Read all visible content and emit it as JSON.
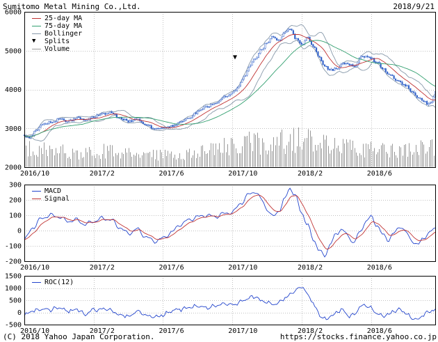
{
  "header": {
    "title": "Sumitomo Metal Mining Co.,Ltd.",
    "date": "2018/9/21"
  },
  "footer": {
    "copyright": "(C) 2018 Yahoo Japan Corporation.",
    "url": "https://stocks.finance.yahoo.co.jp"
  },
  "legend": {
    "price": [
      "25-day MA",
      "75-day MA",
      "Bollinger",
      "Splits",
      "Volume"
    ],
    "splits_marker": "▼",
    "macd": [
      "MACD",
      "Signal"
    ],
    "roc": [
      "ROC(12)"
    ]
  },
  "colors": {
    "ma25": "#c03333",
    "ma75": "#33a070",
    "bollinger": "#8899aa",
    "volume": "#999999",
    "candle": "#3060c8",
    "macd": "#2244cc",
    "signal": "#c03333",
    "roc": "#2244cc",
    "grid": "#c0c0c0",
    "border": "#000000"
  },
  "chart_data": [
    {
      "name": "price-panel",
      "type": "candlestick",
      "title": "Sumitomo Metal Mining Co.,Ltd.",
      "overlays": [
        "25-day MA",
        "75-day MA",
        "Bollinger bands",
        "Volume",
        "Splits"
      ],
      "x_axis": {
        "labels": [
          "2016/10",
          "2017/2",
          "2017/6",
          "2017/10",
          "2018/2",
          "2018/6"
        ],
        "tick_months": [
          0,
          4,
          8,
          12,
          16,
          20
        ],
        "months_total": 23.7,
        "start": "2016/10",
        "end": "2018/9/21"
      },
      "y_axis": {
        "ticks": [
          6000,
          5000,
          4000,
          3000,
          2000
        ],
        "range": [
          2000,
          6000
        ]
      },
      "close_anchors": [
        [
          0,
          2820
        ],
        [
          0.3,
          2760
        ],
        [
          0.7,
          2950
        ],
        [
          1,
          3080
        ],
        [
          1.5,
          3150
        ],
        [
          2,
          3230
        ],
        [
          2.5,
          3180
        ],
        [
          3,
          3260
        ],
        [
          3.5,
          3220
        ],
        [
          4,
          3300
        ],
        [
          4.5,
          3380
        ],
        [
          5,
          3400
        ],
        [
          5.5,
          3260
        ],
        [
          6,
          3180
        ],
        [
          6.5,
          3220
        ],
        [
          7,
          3120
        ],
        [
          7.5,
          2980
        ],
        [
          8,
          3000
        ],
        [
          8.5,
          3060
        ],
        [
          9,
          3150
        ],
        [
          9.5,
          3280
        ],
        [
          10,
          3420
        ],
        [
          10.5,
          3560
        ],
        [
          11,
          3650
        ],
        [
          11.5,
          3800
        ],
        [
          12,
          3900
        ],
        [
          12.3,
          4050
        ],
        [
          12.7,
          4350
        ],
        [
          13,
          4600
        ],
        [
          13.3,
          4800
        ],
        [
          13.7,
          5050
        ],
        [
          14,
          5200
        ],
        [
          14.3,
          5350
        ],
        [
          14.7,
          5250
        ],
        [
          15,
          5450
        ],
        [
          15.3,
          5550
        ],
        [
          15.7,
          5300
        ],
        [
          16,
          5150
        ],
        [
          16.3,
          5350
        ],
        [
          16.7,
          5100
        ],
        [
          17,
          4850
        ],
        [
          17.3,
          4600
        ],
        [
          17.7,
          4500
        ],
        [
          18,
          4550
        ],
        [
          18.5,
          4680
        ],
        [
          19,
          4600
        ],
        [
          19.5,
          4850
        ],
        [
          20,
          4800
        ],
        [
          20.3,
          4700
        ],
        [
          20.7,
          4550
        ],
        [
          21,
          4400
        ],
        [
          21.5,
          4250
        ],
        [
          22,
          4100
        ],
        [
          22.3,
          3950
        ],
        [
          22.7,
          3800
        ],
        [
          23,
          3700
        ],
        [
          23.3,
          3620
        ],
        [
          23.5,
          3680
        ],
        [
          23.7,
          3950
        ]
      ],
      "volume_profile": [
        [
          0,
          0.5
        ],
        [
          1,
          0.45
        ],
        [
          2,
          0.42
        ],
        [
          3,
          0.36
        ],
        [
          4,
          0.4
        ],
        [
          5,
          0.45
        ],
        [
          6,
          0.36
        ],
        [
          7,
          0.3
        ],
        [
          8,
          0.34
        ],
        [
          9,
          0.3
        ],
        [
          10,
          0.4
        ],
        [
          11,
          0.5
        ],
        [
          12,
          0.58
        ],
        [
          13,
          0.68
        ],
        [
          14,
          0.62
        ],
        [
          15,
          0.7
        ],
        [
          16,
          0.74
        ],
        [
          17,
          0.64
        ],
        [
          18,
          0.55
        ],
        [
          19,
          0.5
        ],
        [
          20,
          0.46
        ],
        [
          21,
          0.5
        ],
        [
          22,
          0.44
        ],
        [
          23,
          0.5
        ],
        [
          23.7,
          0.55
        ]
      ],
      "split_events": [
        {
          "month": 12.15,
          "value": 4780,
          "marker": "▼"
        }
      ]
    },
    {
      "name": "macd-panel",
      "type": "line",
      "y_axis": {
        "ticks": [
          300,
          200,
          100,
          0,
          -100,
          -200
        ],
        "range": [
          -200,
          300
        ]
      },
      "series": [
        {
          "name": "MACD",
          "anchors": [
            [
              0,
              -60
            ],
            [
              0.5,
              20
            ],
            [
              1,
              80
            ],
            [
              1.5,
              100
            ],
            [
              2,
              90
            ],
            [
              2.5,
              60
            ],
            [
              3,
              70
            ],
            [
              3.5,
              40
            ],
            [
              4,
              60
            ],
            [
              4.5,
              80
            ],
            [
              5,
              70
            ],
            [
              5.5,
              20
            ],
            [
              6,
              -20
            ],
            [
              6.5,
              10
            ],
            [
              7,
              -40
            ],
            [
              7.5,
              -70
            ],
            [
              8,
              -50
            ],
            [
              8.5,
              -10
            ],
            [
              9,
              40
            ],
            [
              9.5,
              70
            ],
            [
              10,
              90
            ],
            [
              10.5,
              100
            ],
            [
              11,
              90
            ],
            [
              11.5,
              110
            ],
            [
              12,
              120
            ],
            [
              12.5,
              180
            ],
            [
              13,
              240
            ],
            [
              13.3,
              255
            ],
            [
              13.7,
              200
            ],
            [
              14,
              140
            ],
            [
              14.3,
              90
            ],
            [
              14.7,
              130
            ],
            [
              15,
              200
            ],
            [
              15.3,
              280
            ],
            [
              15.6,
              230
            ],
            [
              16,
              120
            ],
            [
              16.3,
              40
            ],
            [
              16.7,
              -60
            ],
            [
              17,
              -130
            ],
            [
              17.3,
              -165
            ],
            [
              17.7,
              -80
            ],
            [
              18,
              -20
            ],
            [
              18.3,
              10
            ],
            [
              18.7,
              -40
            ],
            [
              19,
              -80
            ],
            [
              19.3,
              -20
            ],
            [
              19.7,
              60
            ],
            [
              20,
              90
            ],
            [
              20.3,
              40
            ],
            [
              20.7,
              -30
            ],
            [
              21,
              -60
            ],
            [
              21.3,
              -20
            ],
            [
              21.7,
              30
            ],
            [
              22,
              -10
            ],
            [
              22.3,
              -60
            ],
            [
              22.7,
              -95
            ],
            [
              23,
              -50
            ],
            [
              23.3,
              -20
            ],
            [
              23.7,
              15
            ]
          ]
        },
        {
          "name": "Signal",
          "derived": "smoothed MACD"
        }
      ]
    },
    {
      "name": "roc-panel",
      "type": "line",
      "y_axis": {
        "ticks": [
          1500,
          1000,
          500,
          0,
          -500
        ],
        "range": [
          -500,
          1500
        ]
      },
      "series": [
        {
          "name": "ROC(12)",
          "anchors": [
            [
              0,
              -100
            ],
            [
              0.5,
              60
            ],
            [
              1,
              150
            ],
            [
              1.5,
              100
            ],
            [
              2,
              180
            ],
            [
              2.5,
              50
            ],
            [
              3,
              120
            ],
            [
              3.5,
              -60
            ],
            [
              4,
              100
            ],
            [
              4.5,
              150
            ],
            [
              5,
              80
            ],
            [
              5.5,
              -100
            ],
            [
              6,
              -150
            ],
            [
              6.5,
              60
            ],
            [
              7,
              -120
            ],
            [
              7.5,
              -200
            ],
            [
              8,
              -100
            ],
            [
              8.5,
              60
            ],
            [
              9,
              130
            ],
            [
              9.5,
              200
            ],
            [
              10,
              250
            ],
            [
              10.5,
              180
            ],
            [
              11,
              280
            ],
            [
              11.5,
              360
            ],
            [
              12,
              300
            ],
            [
              12.5,
              450
            ],
            [
              13,
              600
            ],
            [
              13.3,
              650
            ],
            [
              13.7,
              480
            ],
            [
              14,
              400
            ],
            [
              14.5,
              350
            ],
            [
              15,
              550
            ],
            [
              15.5,
              820
            ],
            [
              16,
              1060
            ],
            [
              16.4,
              700
            ],
            [
              16.8,
              200
            ],
            [
              17.1,
              -200
            ],
            [
              17.4,
              -300
            ],
            [
              17.8,
              -100
            ],
            [
              18,
              0
            ],
            [
              18.3,
              120
            ],
            [
              18.7,
              -150
            ],
            [
              19,
              -100
            ],
            [
              19.3,
              160
            ],
            [
              19.6,
              300
            ],
            [
              20,
              200
            ],
            [
              20.3,
              0
            ],
            [
              20.7,
              -160
            ],
            [
              21,
              -100
            ],
            [
              21.3,
              60
            ],
            [
              21.7,
              120
            ],
            [
              22,
              -50
            ],
            [
              22.3,
              -200
            ],
            [
              22.7,
              -260
            ],
            [
              23,
              -100
            ],
            [
              23.3,
              0
            ],
            [
              23.7,
              120
            ]
          ]
        }
      ]
    }
  ]
}
